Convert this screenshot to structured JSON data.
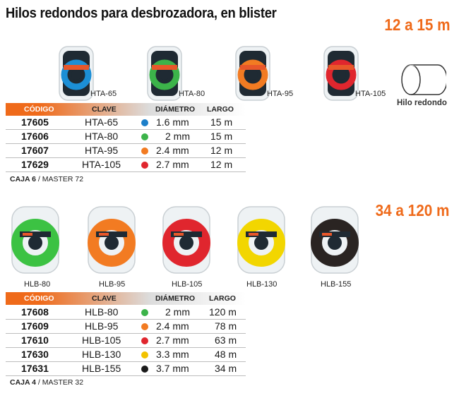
{
  "title": "Hilos redondos para desbrozadora, en blister",
  "sections": [
    {
      "range": "12 a 15 m",
      "products": [
        {
          "label": "HTA-65",
          "color": "#1c8fd6"
        },
        {
          "label": "HTA-80",
          "color": "#3cb34a"
        },
        {
          "label": "HTA-95",
          "color": "#f27b22"
        },
        {
          "label": "HTA-105",
          "color": "#e0262e"
        }
      ],
      "headers": {
        "codigo": "CÓDIGO",
        "clave": "CLAVE",
        "diametro": "DIÁMETRO",
        "largo": "LARGO"
      },
      "rows": [
        {
          "code": "17605",
          "clave": "HTA-65",
          "color": "#1c7fc9",
          "diametro": "1.6 mm",
          "largo": "15 m"
        },
        {
          "code": "17606",
          "clave": "HTA-80",
          "color": "#3cb34a",
          "diametro": "2 mm",
          "largo": "15 m"
        },
        {
          "code": "17607",
          "clave": "HTA-95",
          "color": "#f27b22",
          "diametro": "2.4 mm",
          "largo": "12 m"
        },
        {
          "code": "17629",
          "clave": "HTA-105",
          "color": "#e0262e",
          "diametro": "2.7 mm",
          "largo": "12 m"
        }
      ],
      "caja": {
        "label": "CAJA 6",
        "master": "/ MASTER 72"
      }
    },
    {
      "range": "34 a 120 m",
      "products": [
        {
          "label": "HLB-80",
          "color": "#3cc243"
        },
        {
          "label": "HLB-95",
          "color": "#f27b22"
        },
        {
          "label": "HLB-105",
          "color": "#e0262e"
        },
        {
          "label": "HLB-130",
          "color": "#f2d600"
        },
        {
          "label": "HLB-155",
          "color": "#2a2422"
        }
      ],
      "headers": {
        "codigo": "CÓDIGO",
        "clave": "CLAVE",
        "diametro": "DIÁMETRO",
        "largo": "LARGO"
      },
      "rows": [
        {
          "code": "17608",
          "clave": "HLB-80",
          "color": "#3cb34a",
          "diametro": "2 mm",
          "largo": "120 m"
        },
        {
          "code": "17609",
          "clave": "HLB-95",
          "color": "#f27b22",
          "diametro": "2.4 mm",
          "largo": "78 m"
        },
        {
          "code": "17610",
          "clave": "HLB-105",
          "color": "#e0262e",
          "diametro": "2.7 mm",
          "largo": "63 m"
        },
        {
          "code": "17630",
          "clave": "HLB-130",
          "color": "#f2c200",
          "diametro": "3.3 mm",
          "largo": "48 m"
        },
        {
          "code": "17631",
          "clave": "HLB-155",
          "color": "#1a1a1a",
          "diametro": "3.7 mm",
          "largo": "34 m"
        }
      ],
      "caja": {
        "label": "CAJA 4",
        "master": "/ MASTER 32"
      }
    }
  ],
  "hilo_redondo": {
    "label": "Hilo redondo"
  }
}
